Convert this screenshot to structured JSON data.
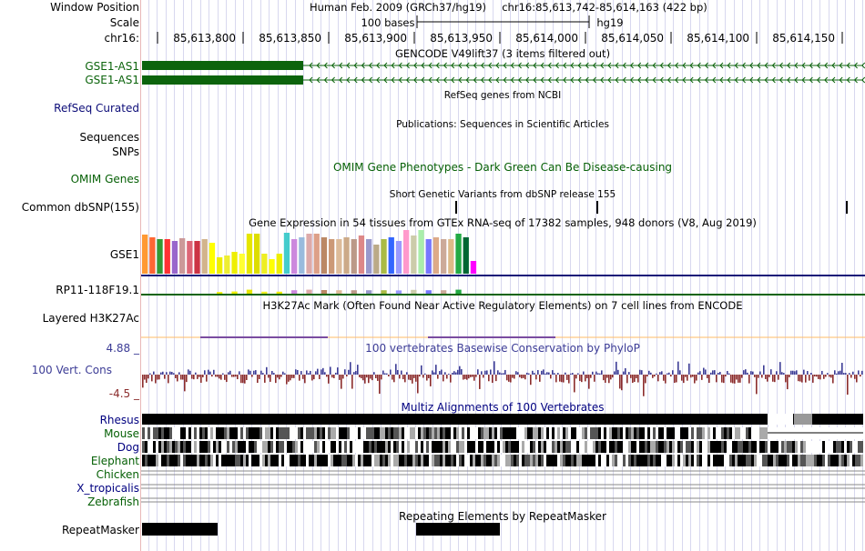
{
  "colors": {
    "gencode": "#0c640c",
    "refseq": "#0c0c78",
    "omim": "#066006",
    "navy": "#000080",
    "phylop_pos": "#3c3c96",
    "phylop_neg": "#8b2c2c",
    "gtex_baseline": "#141478",
    "gtex_baseline2": "#0c640c",
    "h3k27ac": "#7a4ca0",
    "guide": "#d8d8ef",
    "conserv_label": "#3c3c96"
  },
  "header": {
    "window_label": "Window Position",
    "assembly_text": "Human Feb. 2009 (GRCh37/hg19)",
    "position_text": "chr16:85,613,742-85,614,163 (422 bp)",
    "scale_label": "Scale",
    "scale_bar_text": "100 bases",
    "scale_db": "hg19",
    "chrom_label": "chr16:",
    "ruler_ticks": [
      "85,613,800",
      "85,613,850",
      "85,613,900",
      "85,613,950",
      "85,614,000",
      "85,614,050",
      "85,614,100",
      "85,614,150"
    ]
  },
  "tracks": {
    "gencode": {
      "title": "GENCODE V49lift37 (3 items filtered out)",
      "genes": [
        "GSE1-AS1",
        "GSE1-AS1"
      ]
    },
    "refseq": {
      "title": "RefSeq genes from NCBI",
      "label": "RefSeq Curated"
    },
    "publications": {
      "title": "Publications: Sequences in Scientific Articles",
      "label": "Sequences"
    },
    "snps_label": "SNPs",
    "omim": {
      "title": "OMIM Gene Phenotypes - Dark Green Can Be Disease-causing",
      "label": "OMIM Genes"
    },
    "dbsnp": {
      "title": "Short Genetic Variants from dbSNP release 155",
      "label": "Common dbSNP(155)"
    },
    "gtex": {
      "title": "Gene Expression in 54 tissues from GTEx RNA-seq of 17382 samples, 948 donors (V8, Aug 2019)",
      "gene1": "GSE1",
      "gene2": "RP11-118F19.1"
    },
    "h3k27ac": {
      "title": "H3K27Ac Mark (Often Found Near Active Regulatory Elements) on 7 cell lines from ENCODE",
      "label": "Layered H3K27Ac"
    },
    "conservation": {
      "title": "100 vertebrates Basewise Conservation by PhyloP",
      "label": "100 Vert. Cons",
      "max": "4.88 _",
      "min": "-4.5 _"
    },
    "multiz": {
      "title": "Multiz Alignments of 100 Vertebrates",
      "species": [
        "Rhesus",
        "Mouse",
        "Dog",
        "Elephant",
        "Chicken",
        "X_tropicalis",
        "Zebrafish"
      ]
    },
    "repeatmasker": {
      "title": "Repeating Elements by RepeatMasker",
      "label": "RepeatMasker"
    }
  }
}
